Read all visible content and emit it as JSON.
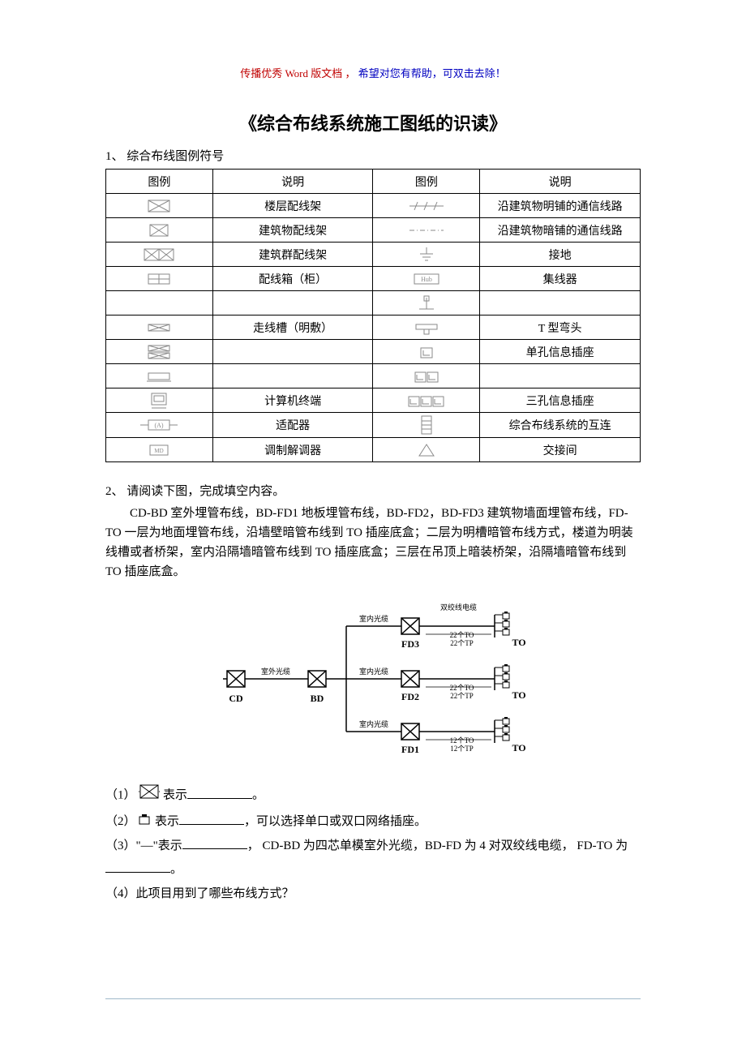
{
  "header_note": {
    "red_text": "传播优秀 Word 版文档 ，",
    "blue_text": "希望对您有帮助，可双击去除！",
    "red_color": "#c00000",
    "blue_color": "#0000c0"
  },
  "title": "《综合布线系统施工图纸的识读》",
  "section1_label": "1、 综合布线图例符号",
  "symbol_table": {
    "headers": [
      "图例",
      "说明",
      "图例",
      "说明"
    ],
    "rows": [
      {
        "icon1": "fd-box",
        "desc1": "楼层配线架",
        "icon2": "line-slash",
        "desc2": "沿建筑物明铺的通信线路"
      },
      {
        "icon1": "bd-box",
        "desc1": "建筑物配线架",
        "icon2": "line-dash",
        "desc2": "沿建筑物暗铺的通信线路"
      },
      {
        "icon1": "cd-box",
        "desc1": "建筑群配线架",
        "icon2": "ground",
        "desc2": "接地"
      },
      {
        "icon1": "cabinet",
        "desc1": "配线箱（柜）",
        "icon2": "hub",
        "desc2": "集线器"
      },
      {
        "icon1": "blank",
        "desc1": "",
        "icon2": "right-angle",
        "desc2": ""
      },
      {
        "icon1": "tray",
        "desc1": "走线槽（明敷）",
        "icon2": "tee",
        "desc2": "T 型弯头"
      },
      {
        "icon1": "tray-x",
        "desc1": "",
        "icon2": "outlet1",
        "desc2": "单孔信息插座"
      },
      {
        "icon1": "box-flat",
        "desc1": "",
        "icon2": "outlet2",
        "desc2": ""
      },
      {
        "icon1": "terminal",
        "desc1": "计算机终端",
        "icon2": "outlet3",
        "desc2": "三孔信息插座"
      },
      {
        "icon1": "adapter",
        "desc1": "适配器",
        "icon2": "ladder",
        "desc2": "综合布线系统的互连"
      },
      {
        "icon1": "modem",
        "desc1": "调制解调器",
        "icon2": "triangle",
        "desc2": "交接间"
      }
    ]
  },
  "section2_label": "2、 请阅读下图，完成填空内容。",
  "description": "CD-BD 室外埋管布线，BD-FD1 地板埋管布线，BD-FD2，BD-FD3 建筑物墙面埋管布线，FD-TO 一层为地面埋管布线，沿墙壁暗管布线到 TO 插座底盒；二层为明槽暗管布线方式，楼道为明装线槽或者桥架，室内沿隔墙暗管布线到 TO 插座底盒；三层在吊顶上暗装桥架，沿隔墙暗管布线到 TO 插座底盒。",
  "diagram": {
    "cd_label": "CD",
    "bd_label": "BD",
    "fd3_label": "FD3",
    "fd2_label": "FD2",
    "fd1_label": "FD1",
    "to_label": "TO",
    "outdoor_cable": "室外光缆",
    "indoor_cable": "室内光缆",
    "twisted_pair": "双绞线电缆",
    "fd3_count": "22个TO\n22个TP",
    "fd2_count": "22个TO\n22个TP",
    "fd1_count": "12个TO\n12个TP",
    "stroke_color": "#000000",
    "label_fontsize": 9,
    "bold_fontsize": 12
  },
  "questions": {
    "q1_prefix": "（1）",
    "q1_mid": "表示",
    "q1_suffix": "。",
    "q2_prefix": "（2）",
    "q2_mid": "表示",
    "q2_suffix": "，可以选择单口或双口网络插座。",
    "q3_prefix": "（3）\"—\"表示",
    "q3_mid": "，  CD-BD 为四芯单模室外光缆，BD-FD 为 4 对双绞线电缆， FD-TO 为",
    "q3_suffix": "。",
    "q4": "（4）此项目用到了哪些布线方式？"
  },
  "colors": {
    "text": "#000000",
    "border": "#000000",
    "footer_line": "#9fb9c9",
    "icon_stroke": "#8a8a8a"
  }
}
